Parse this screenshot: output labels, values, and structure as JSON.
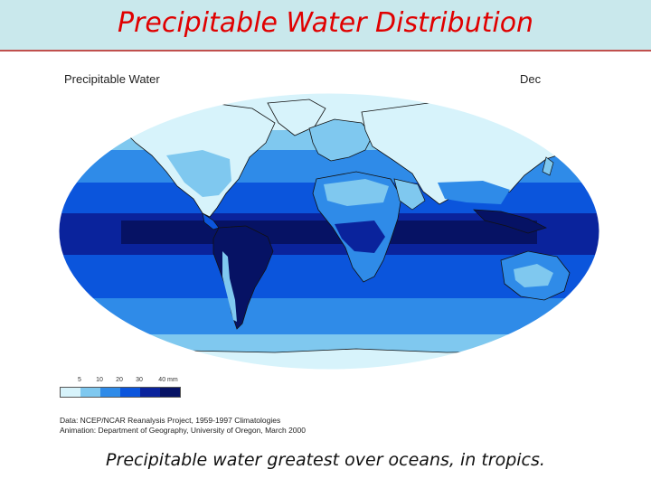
{
  "slide": {
    "title": "Precipitable  Water  Distribution",
    "caption": "Precipitable water greatest over oceans, in tropics."
  },
  "figure": {
    "title": "Precipitable Water",
    "month": "Dec",
    "legend": {
      "ticks": [
        "5",
        "10",
        "20",
        "30",
        "40 mm"
      ],
      "colors": [
        "#d7f3fb",
        "#7fc8ef",
        "#2f8be8",
        "#0b55dc",
        "#0a239c",
        "#061264"
      ]
    },
    "credits": [
      "Data:  NCEP/NCAR Reanalysis Project, 1959-1997 Climatologies",
      "Animation:  Department of Geography, University of Oregon, March 2000"
    ]
  },
  "colors": {
    "header_bg": "#c9e8ec",
    "title_red": "#e00000",
    "ocean_polar": "#d7f3fb",
    "ocean_high": "#7fc8ef",
    "ocean_mid": "#2f8be8",
    "ocean_subtropic": "#0b55dc",
    "ocean_tropic": "#0a239c",
    "ocean_core": "#061264"
  }
}
